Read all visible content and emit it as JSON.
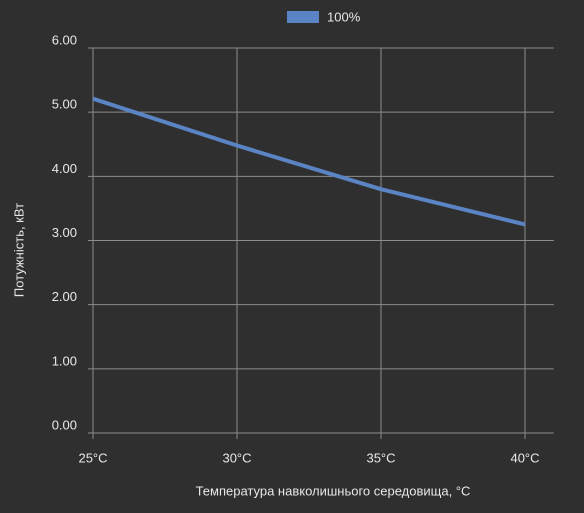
{
  "chart_data": {
    "type": "line",
    "x_label": "Температура навколишнього середовища, °C",
    "y_label": "Потужність, кВт",
    "x": [
      25,
      30,
      35,
      40
    ],
    "series": [
      {
        "name": "100%",
        "color": "#5b84c4",
        "values": [
          5.21,
          4.48,
          3.8,
          3.25
        ]
      }
    ],
    "xlim": [
      25,
      41
    ],
    "xticks": [
      {
        "value": 25,
        "label": "25°C"
      },
      {
        "value": 30,
        "label": "30°C"
      },
      {
        "value": 35,
        "label": "35°C"
      },
      {
        "value": 40,
        "label": "40°C"
      }
    ],
    "ylim": [
      0,
      6
    ],
    "yticks": [
      {
        "value": 0,
        "label": "0.00"
      },
      {
        "value": 1,
        "label": "1.00"
      },
      {
        "value": 2,
        "label": "2.00"
      },
      {
        "value": 3,
        "label": "3.00"
      },
      {
        "value": 4,
        "label": "4.00"
      },
      {
        "value": 5,
        "label": "5.00"
      },
      {
        "value": 6,
        "label": "6.00"
      }
    ],
    "grid": true,
    "legend": "top"
  }
}
